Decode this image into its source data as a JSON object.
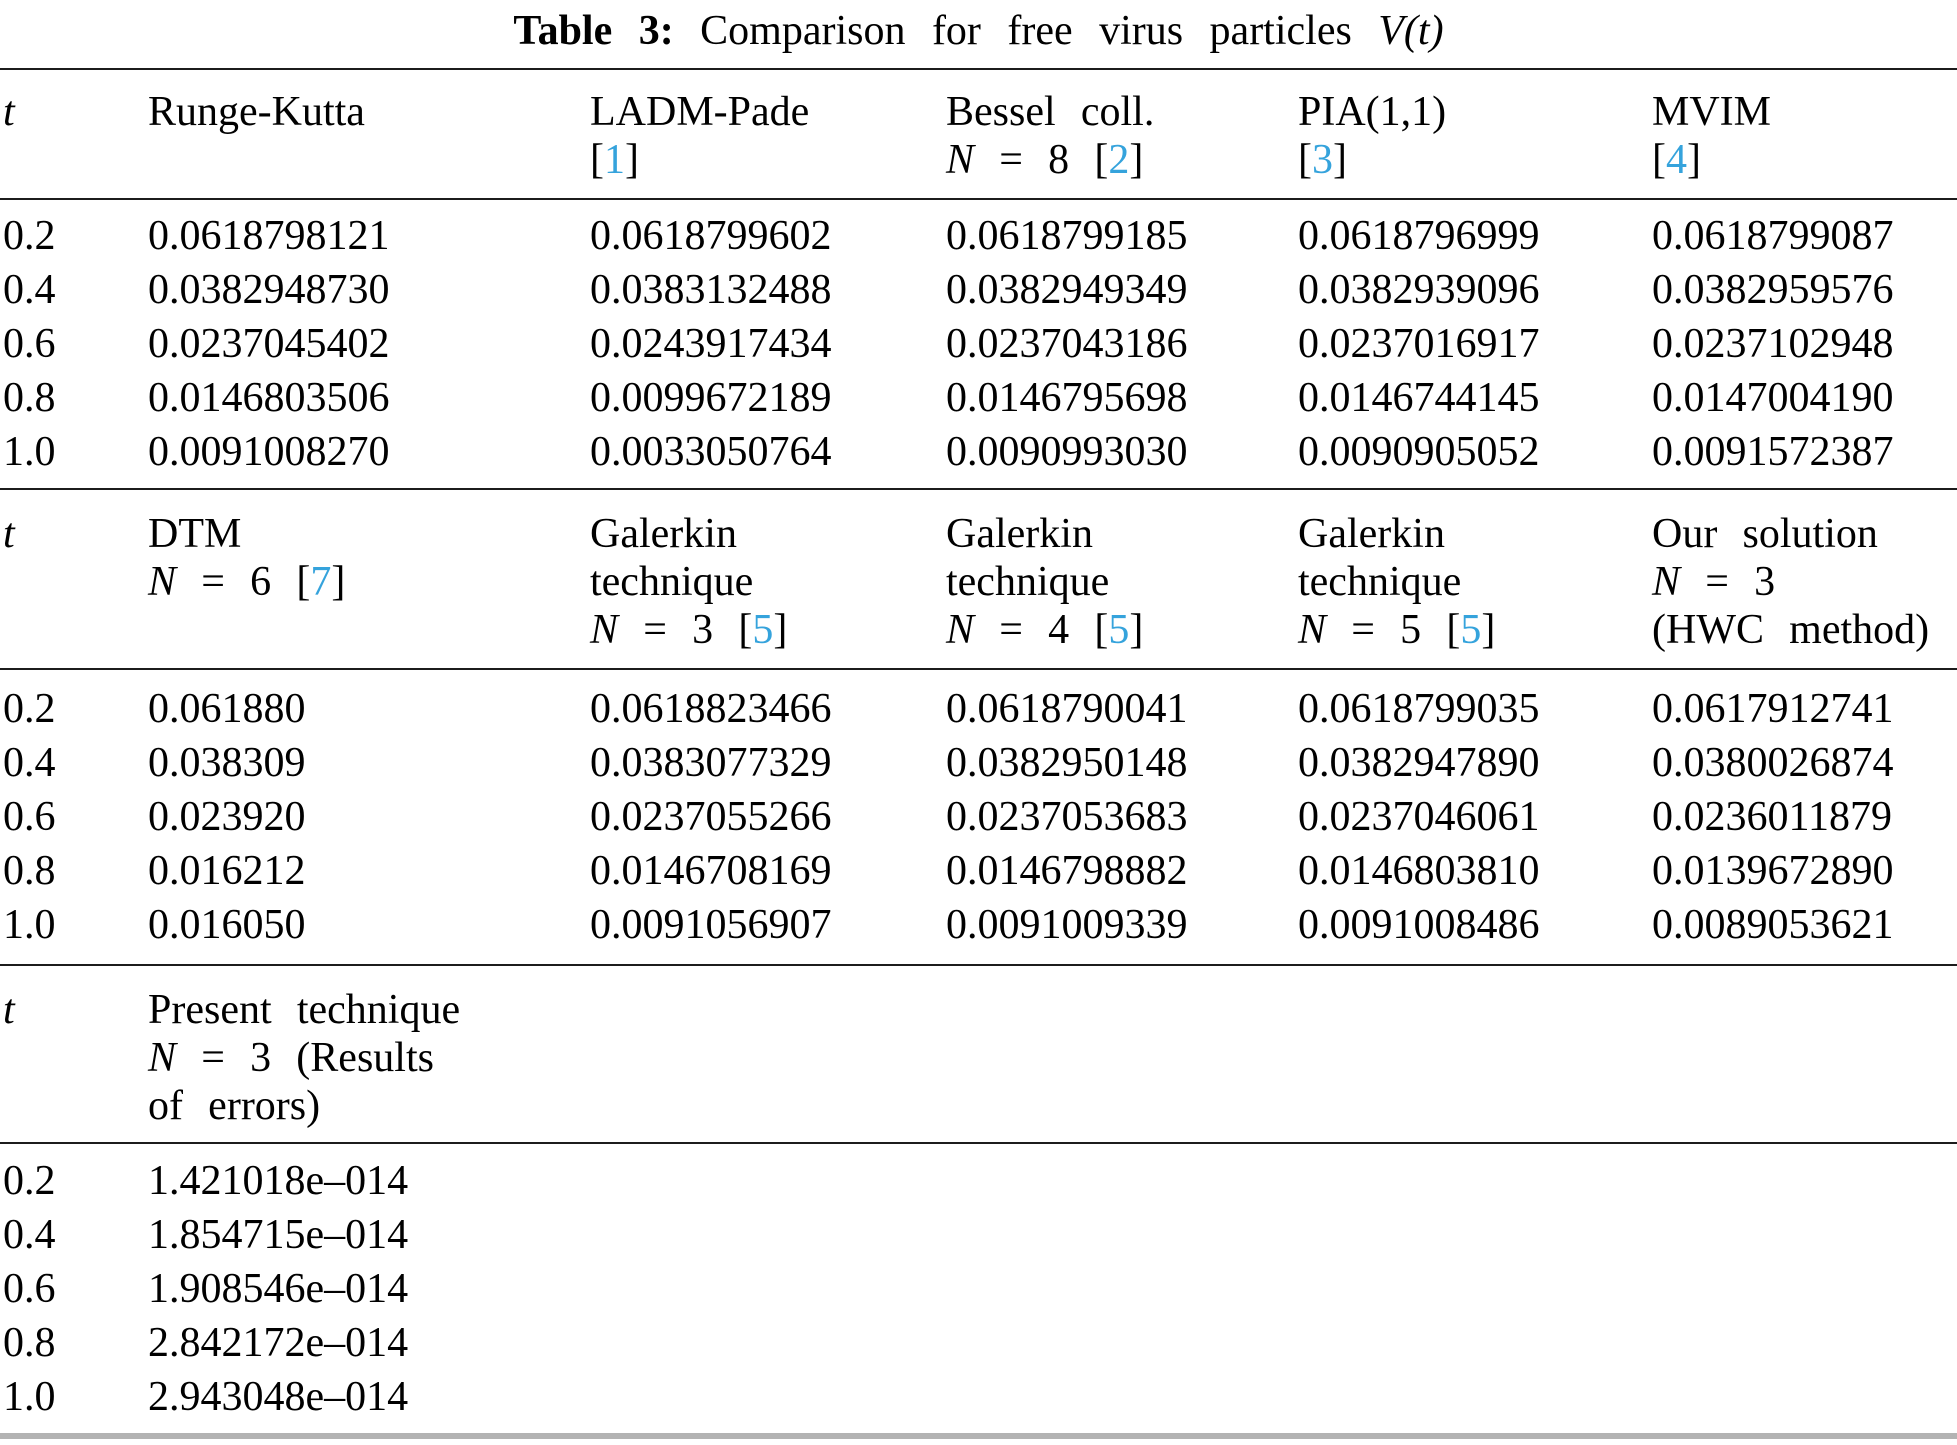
{
  "accent_color": "#35a3dc",
  "rule_color": "#1c1c1c",
  "bottom_rule_color": "#b3b3b3",
  "title": {
    "label": "Table 3:",
    "text": "Comparison for free virus particles",
    "math": "V(t)"
  },
  "sections": [
    {
      "t_header": "t",
      "columns": [
        {
          "l1": "Runge-Kutta"
        },
        {
          "l1": "LADM-Pade",
          "open": "[",
          "ref": "1",
          "close": "]"
        },
        {
          "l1": "Bessel coll.",
          "n": "N",
          "eq": " = 8 ",
          "open": "[",
          "ref": "2",
          "close": "]"
        },
        {
          "l1": "PIA(1,1)",
          "open": "[",
          "ref": "3",
          "close": "]"
        },
        {
          "l1": "MVIM",
          "open": "[",
          "ref": "4",
          "close": "]"
        }
      ],
      "rows": [
        {
          "t": "0.2",
          "v0": "0.0618798121",
          "v1": "0.0618799602",
          "v2": "0.0618799185",
          "v3": "0.0618796999",
          "v4": "0.0618799087"
        },
        {
          "t": "0.4",
          "v0": "0.0382948730",
          "v1": "0.0383132488",
          "v2": "0.0382949349",
          "v3": "0.0382939096",
          "v4": "0.0382959576"
        },
        {
          "t": "0.6",
          "v0": "0.0237045402",
          "v1": "0.0243917434",
          "v2": "0.0237043186",
          "v3": "0.0237016917",
          "v4": "0.0237102948"
        },
        {
          "t": "0.8",
          "v0": "0.0146803506",
          "v1": "0.0099672189",
          "v2": "0.0146795698",
          "v3": "0.0146744145",
          "v4": "0.0147004190"
        },
        {
          "t": "1.0",
          "v0": "0.0091008270",
          "v1": "0.0033050764",
          "v2": "0.0090993030",
          "v3": "0.0090905052",
          "v4": "0.0091572387"
        }
      ]
    },
    {
      "t_header": "t",
      "columns": [
        {
          "l1": "DTM",
          "n": "N",
          "eq": " = 6 ",
          "open": "[",
          "ref": "7",
          "close": "]"
        },
        {
          "l1": "Galerkin",
          "l2": "technique",
          "n": "N",
          "eq": " = 3 ",
          "open": "[",
          "ref": "5",
          "close": "]"
        },
        {
          "l1": "Galerkin",
          "l2": "technique",
          "n": "N",
          "eq": " = 4 ",
          "open": "[",
          "ref": "5",
          "close": "]"
        },
        {
          "l1": "Galerkin",
          "l2": "technique",
          "n": "N",
          "eq": " = 5 ",
          "open": "[",
          "ref": "5",
          "close": "]"
        },
        {
          "l1": "Our solution",
          "n": "N",
          "eq": " = 3",
          "l3": "(HWC method)"
        }
      ],
      "rows": [
        {
          "t": "0.2",
          "v0": "0.061880",
          "v1": "0.0618823466",
          "v2": "0.0618790041",
          "v3": "0.0618799035",
          "v4": "0.0617912741"
        },
        {
          "t": "0.4",
          "v0": "0.038309",
          "v1": "0.0383077329",
          "v2": "0.0382950148",
          "v3": "0.0382947890",
          "v4": "0.0380026874"
        },
        {
          "t": "0.6",
          "v0": "0.023920",
          "v1": "0.0237055266",
          "v2": "0.0237053683",
          "v3": "0.0237046061",
          "v4": "0.0236011879"
        },
        {
          "t": "0.8",
          "v0": "0.016212",
          "v1": "0.0146708169",
          "v2": "0.0146798882",
          "v3": "0.0146803810",
          "v4": "0.0139672890"
        },
        {
          "t": "1.0",
          "v0": "0.016050",
          "v1": "0.0091056907",
          "v2": "0.0091009339",
          "v3": "0.0091008486",
          "v4": "0.0089053621"
        }
      ]
    },
    {
      "t_header": "t",
      "columns": [
        {
          "l1": "Present technique",
          "n": "N",
          "eq": " = 3 (Results",
          "l3": "of errors)"
        }
      ],
      "rows": [
        {
          "t": "0.2",
          "v0": "1.421018e–014"
        },
        {
          "t": "0.4",
          "v0": "1.854715e–014"
        },
        {
          "t": "0.6",
          "v0": "1.908546e–014"
        },
        {
          "t": "0.8",
          "v0": "2.842172e–014"
        },
        {
          "t": "1.0",
          "v0": "2.943048e–014"
        }
      ]
    }
  ]
}
